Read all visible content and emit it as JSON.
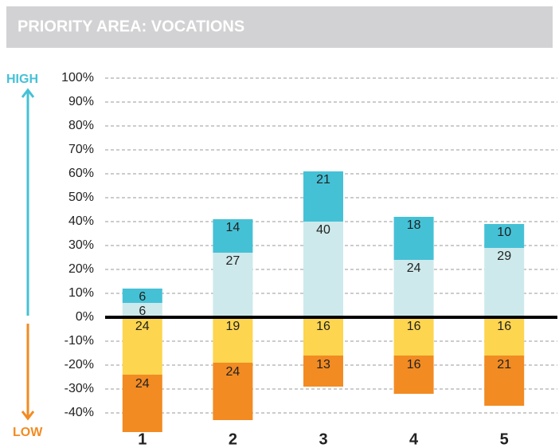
{
  "chart_data": {
    "type": "diverging_stacked_bar",
    "title": "PRIORITY AREA: VOCATIONS",
    "annotations": {
      "high": "HIGH",
      "low": "LOW"
    },
    "categories": [
      "1",
      "2",
      "3",
      "4",
      "5"
    ],
    "series": [
      {
        "color": "#cde9eb",
        "values": [
          6,
          27,
          40,
          24,
          29
        ]
      },
      {
        "color": "#45c1d6",
        "values": [
          6,
          14,
          21,
          18,
          10
        ]
      },
      {
        "color": "#fdd54f",
        "values": [
          -24,
          -19,
          -16,
          -16,
          -16
        ],
        "value_labels": [
          "24",
          "19",
          "16",
          "16",
          "16"
        ]
      },
      {
        "color": "#f28b22",
        "values": [
          -24,
          -24,
          -13,
          -16,
          -21
        ],
        "value_labels": [
          "24",
          "24",
          "13",
          "16",
          "21"
        ]
      }
    ],
    "ylim": [
      -50,
      100
    ],
    "yticks": [
      {
        "value": 100,
        "label": "100%"
      },
      {
        "value": 90,
        "label": "90%"
      },
      {
        "value": 80,
        "label": "80%"
      },
      {
        "value": 70,
        "label": "70%"
      },
      {
        "value": 60,
        "label": "60%"
      },
      {
        "value": 50,
        "label": "50%"
      },
      {
        "value": 40,
        "label": "40%"
      },
      {
        "value": 30,
        "label": "30%"
      },
      {
        "value": 20,
        "label": "20%"
      },
      {
        "value": 10,
        "label": "10%"
      },
      {
        "value": 0,
        "label": "0%"
      },
      {
        "value": -10,
        "label": "-10%"
      },
      {
        "value": -20,
        "label": "-20%"
      },
      {
        "value": -30,
        "label": "-30%"
      },
      {
        "value": -40,
        "label": "-40%"
      }
    ],
    "grid": true
  }
}
